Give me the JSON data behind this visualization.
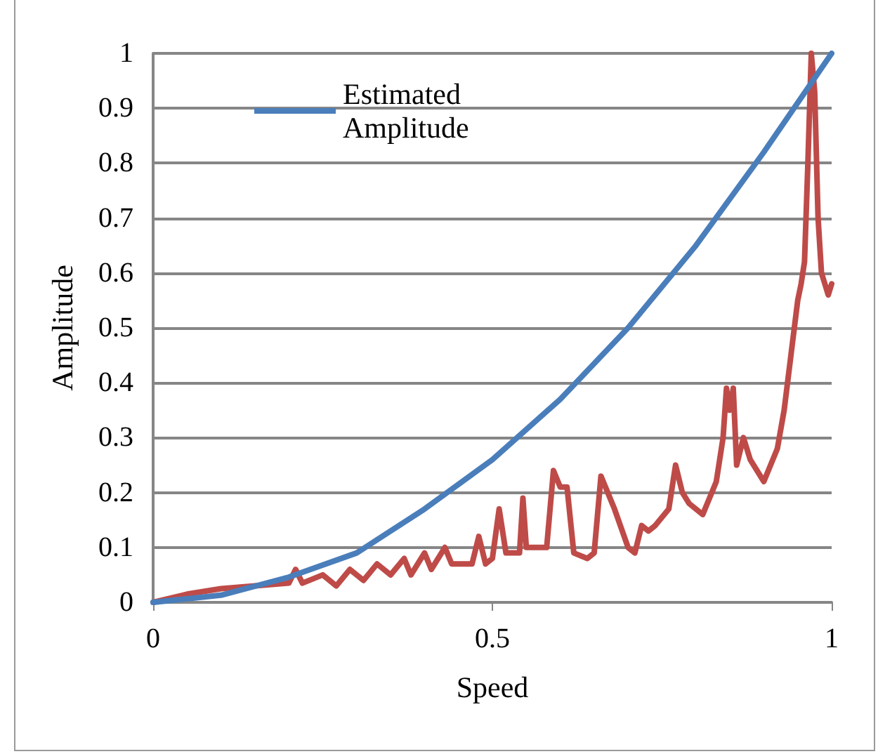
{
  "chart_data": {
    "type": "line",
    "xlabel": "Speed",
    "ylabel": "Amplitude",
    "xlim": [
      0,
      1
    ],
    "xticks": [
      0,
      0.5,
      1
    ],
    "ylim": [
      0,
      1
    ],
    "yticks": [
      0,
      0.1,
      0.2,
      0.3,
      0.4,
      0.5,
      0.6,
      0.7,
      0.8,
      0.9,
      1
    ],
    "grid": "y",
    "legend": "top left",
    "marker": "none",
    "series": [
      {
        "name": "Estimated Amplitude",
        "color": "#4a7ebb",
        "x": [
          0,
          0.1,
          0.2,
          0.3,
          0.4,
          0.5,
          0.6,
          0.7,
          0.8,
          0.9,
          1
        ],
        "values": [
          0,
          0.013,
          0.046,
          0.09,
          0.17,
          0.26,
          0.37,
          0.5,
          0.65,
          0.82,
          1
        ]
      },
      {
        "color": "#be4b48",
        "x": [
          0,
          0.05,
          0.1,
          0.15,
          0.2,
          0.21,
          0.22,
          0.25,
          0.27,
          0.29,
          0.31,
          0.33,
          0.35,
          0.37,
          0.38,
          0.4,
          0.41,
          0.43,
          0.44,
          0.47,
          0.48,
          0.49,
          0.5,
          0.51,
          0.52,
          0.54,
          0.545,
          0.55,
          0.58,
          0.59,
          0.6,
          0.61,
          0.62,
          0.64,
          0.65,
          0.66,
          0.68,
          0.7,
          0.71,
          0.72,
          0.73,
          0.74,
          0.76,
          0.77,
          0.78,
          0.79,
          0.81,
          0.82,
          0.83,
          0.84,
          0.845,
          0.85,
          0.855,
          0.86,
          0.87,
          0.88,
          0.9,
          0.91,
          0.92,
          0.93,
          0.94,
          0.945,
          0.95,
          0.955,
          0.96,
          0.965,
          0.97,
          0.975,
          0.98,
          0.985,
          0.99,
          0.995,
          1
        ],
        "values": [
          0,
          0.015,
          0.025,
          0.03,
          0.035,
          0.06,
          0.035,
          0.05,
          0.03,
          0.06,
          0.04,
          0.07,
          0.05,
          0.08,
          0.05,
          0.09,
          0.06,
          0.1,
          0.07,
          0.07,
          0.12,
          0.07,
          0.08,
          0.17,
          0.09,
          0.09,
          0.19,
          0.1,
          0.1,
          0.24,
          0.21,
          0.21,
          0.09,
          0.08,
          0.09,
          0.23,
          0.17,
          0.1,
          0.09,
          0.14,
          0.13,
          0.14,
          0.17,
          0.25,
          0.2,
          0.18,
          0.16,
          0.19,
          0.22,
          0.3,
          0.39,
          0.35,
          0.39,
          0.25,
          0.3,
          0.26,
          0.22,
          0.25,
          0.28,
          0.35,
          0.45,
          0.5,
          0.55,
          0.58,
          0.62,
          0.8,
          1,
          0.93,
          0.7,
          0.6,
          0.58,
          0.56,
          0.58
        ]
      }
    ]
  }
}
